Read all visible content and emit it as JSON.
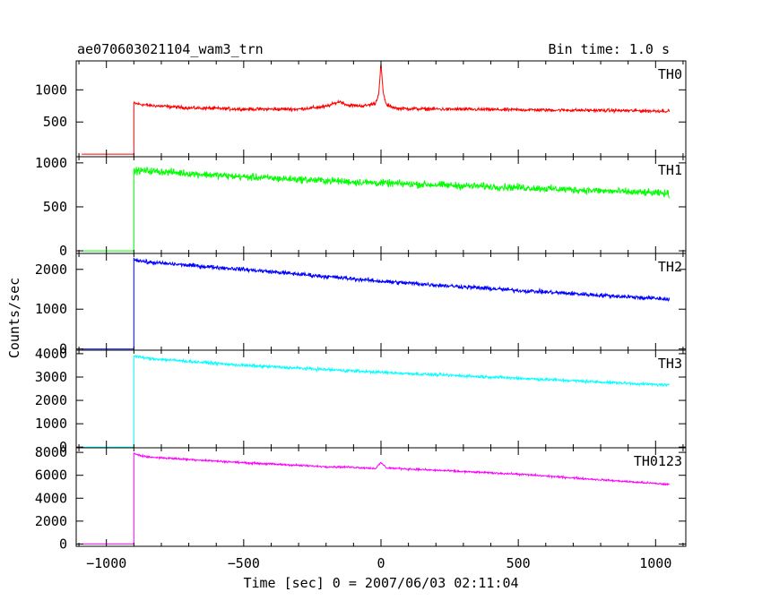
{
  "chart_data": {
    "type": "line",
    "title": "ae070603021104_wam3_trn",
    "bin_time_label": "Bin time: 1.0 s",
    "xlabel": "Time [sec] 0 = 2007/06/03 02:11:04",
    "ylabel": "Counts/sec",
    "xlim": [
      -1110,
      1110
    ],
    "x_ticks": [
      -1000,
      -500,
      0,
      500,
      1000
    ],
    "x_tick_labels": [
      "−1000",
      "−500",
      "0",
      "500",
      "1000"
    ],
    "onset_x": -900,
    "end_x": 1050,
    "series": [
      {
        "name": "TH0",
        "color": "#ff0000",
        "ylim": [
          -40,
          1450
        ],
        "yticks": [
          500,
          1000
        ],
        "ytick_labels": [
          "500",
          "1000"
        ],
        "zero_label": "",
        "pre_level": 0,
        "noise": 25,
        "x": [
          -900,
          -850,
          -700,
          -500,
          -300,
          -200,
          -150,
          -120,
          -60,
          -20,
          -8,
          0,
          8,
          20,
          60,
          200,
          500,
          800,
          1050
        ],
        "y": [
          790,
          760,
          720,
          700,
          700,
          740,
          820,
          760,
          750,
          790,
          950,
          1400,
          950,
          760,
          710,
          700,
          690,
          680,
          670
        ]
      },
      {
        "name": "TH1",
        "color": "#00ff00",
        "ylim": [
          -30,
          1070
        ],
        "yticks": [
          0,
          500,
          1000
        ],
        "ytick_labels": [
          "0",
          "500",
          "1000"
        ],
        "zero_label": "0",
        "pre_level": 0,
        "noise": 40,
        "x": [
          -900,
          -850,
          -500,
          0,
          500,
          1050
        ],
        "y": [
          910,
          910,
          840,
          770,
          720,
          650
        ]
      },
      {
        "name": "TH2",
        "color": "#0000ff",
        "ylim": [
          -30,
          2400
        ],
        "yticks": [
          0,
          1000,
          2000
        ],
        "ytick_labels": [
          "0",
          "1000",
          "2000"
        ],
        "zero_label": "0",
        "pre_level": 0,
        "noise": 50,
        "x": [
          -900,
          -850,
          -500,
          0,
          500,
          1050
        ],
        "y": [
          2250,
          2180,
          2000,
          1700,
          1470,
          1250
        ]
      },
      {
        "name": "TH3",
        "color": "#00ffff",
        "ylim": [
          -30,
          4150
        ],
        "yticks": [
          0,
          1000,
          2000,
          3000,
          4000
        ],
        "ytick_labels": [
          "0",
          "1000",
          "2000",
          "3000",
          "4000"
        ],
        "zero_label": "0",
        "pre_level": 0,
        "noise": 60,
        "x": [
          -900,
          -850,
          -500,
          0,
          500,
          1050
        ],
        "y": [
          3900,
          3800,
          3500,
          3200,
          2950,
          2650
        ]
      },
      {
        "name": "TH0123",
        "color": "#ff00ff",
        "ylim": [
          -200,
          8400
        ],
        "yticks": [
          0,
          2000,
          4000,
          6000,
          8000
        ],
        "ytick_labels": [
          "0",
          "2000",
          "4000",
          "6000",
          "8000"
        ],
        "zero_label": "0",
        "pre_level": 0,
        "noise": 80,
        "x": [
          -900,
          -850,
          -500,
          -200,
          -100,
          -20,
          0,
          20,
          100,
          500,
          1050
        ],
        "y": [
          7900,
          7600,
          7100,
          6750,
          6700,
          6600,
          7100,
          6650,
          6550,
          6100,
          5200
        ]
      }
    ]
  }
}
